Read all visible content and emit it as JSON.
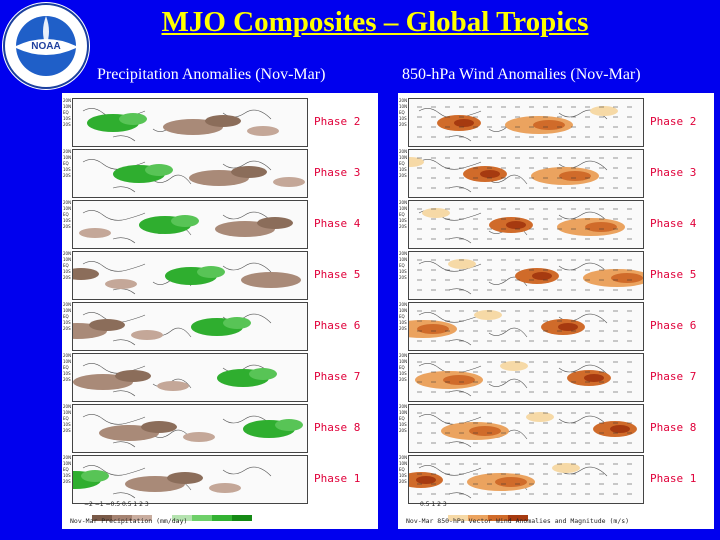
{
  "header": {
    "title": "MJO Composites – Global Tropics",
    "logo_text": "NOAA",
    "logo_ring_text": "NATIONAL OCEANIC AND ATMOSPHERIC ADMINISTRATION · U.S. DEPARTMENT OF COMMERCE"
  },
  "left_panel": {
    "subtitle": "Precipitation Anomalies (Nov-Mar)",
    "colorbar_ticks": "−2   −1   −0.5  0.5   1    2    3",
    "caption": "Nov-Mar Precipitation (mm/day)",
    "colors": [
      "#7a5a48",
      "#a58372",
      "#c9ad9f",
      "#ffffff",
      "#b5e3b0",
      "#6fd06a",
      "#33b233",
      "#158a15"
    ]
  },
  "right_panel": {
    "subtitle": "850-hPa Wind Anomalies (Nov-Mar)",
    "colorbar_ticks": "0.5    1    2    3",
    "caption": "Nov-Mar 850-hPa Vector Wind Anomalies and Magnitude (m/s)",
    "colors": [
      "#ffffff",
      "#f6d9a6",
      "#eba35f",
      "#d06b2a",
      "#a63a10"
    ]
  },
  "latitude_labels": [
    "20N",
    "10N",
    "EQ",
    "10S",
    "20S"
  ],
  "phases": [
    "Phase 2",
    "Phase 3",
    "Phase 4",
    "Phase 5",
    "Phase 6",
    "Phase 7",
    "Phase 8",
    "Phase 1"
  ]
}
